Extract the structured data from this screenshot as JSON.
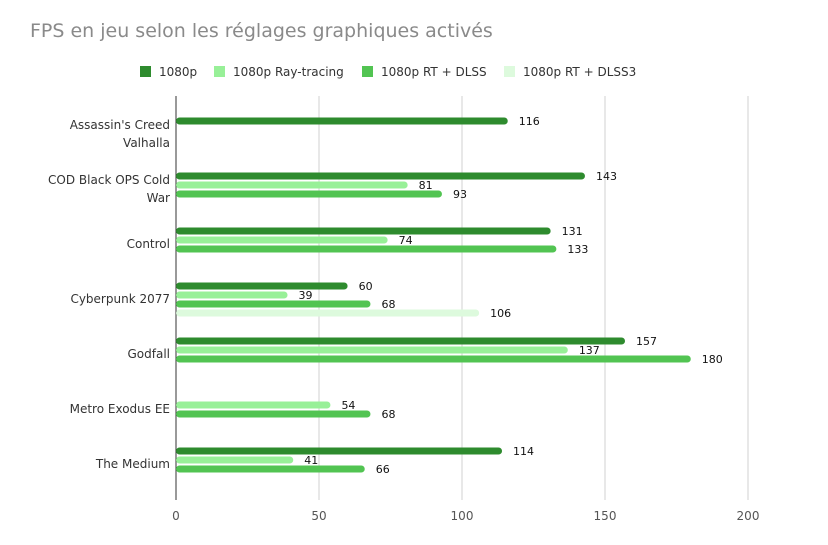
{
  "chart_data": {
    "type": "bar",
    "orientation": "horizontal",
    "title": "FPS en jeu selon les réglages graphiques activés",
    "xlabel": "",
    "ylabel": "",
    "xlim": [
      0,
      200
    ],
    "xticks": [
      0,
      50,
      100,
      150,
      200
    ],
    "grid": true,
    "legend_position": "top",
    "categories": [
      [
        "Assassin's Creed",
        "Valhalla"
      ],
      [
        "COD Black OPS Cold",
        "War"
      ],
      [
        "Control"
      ],
      [
        "Cyberpunk 2077"
      ],
      [
        "Godfall"
      ],
      [
        "Metro Exodus EE"
      ],
      [
        "The Medium"
      ]
    ],
    "series": [
      {
        "name": "1080p",
        "color": "#2e8b2e",
        "values": [
          116,
          143,
          131,
          60,
          157,
          null,
          114
        ]
      },
      {
        "name": "1080p Ray-tracing",
        "color": "#98f098",
        "values": [
          null,
          81,
          74,
          39,
          137,
          54,
          41
        ]
      },
      {
        "name": "1080p RT + DLSS",
        "color": "#52c452",
        "values": [
          null,
          93,
          133,
          68,
          180,
          68,
          66
        ]
      },
      {
        "name": "1080p RT + DLSS3",
        "color": "#ddfadd",
        "values": [
          null,
          null,
          null,
          106,
          null,
          null,
          null
        ]
      }
    ]
  }
}
